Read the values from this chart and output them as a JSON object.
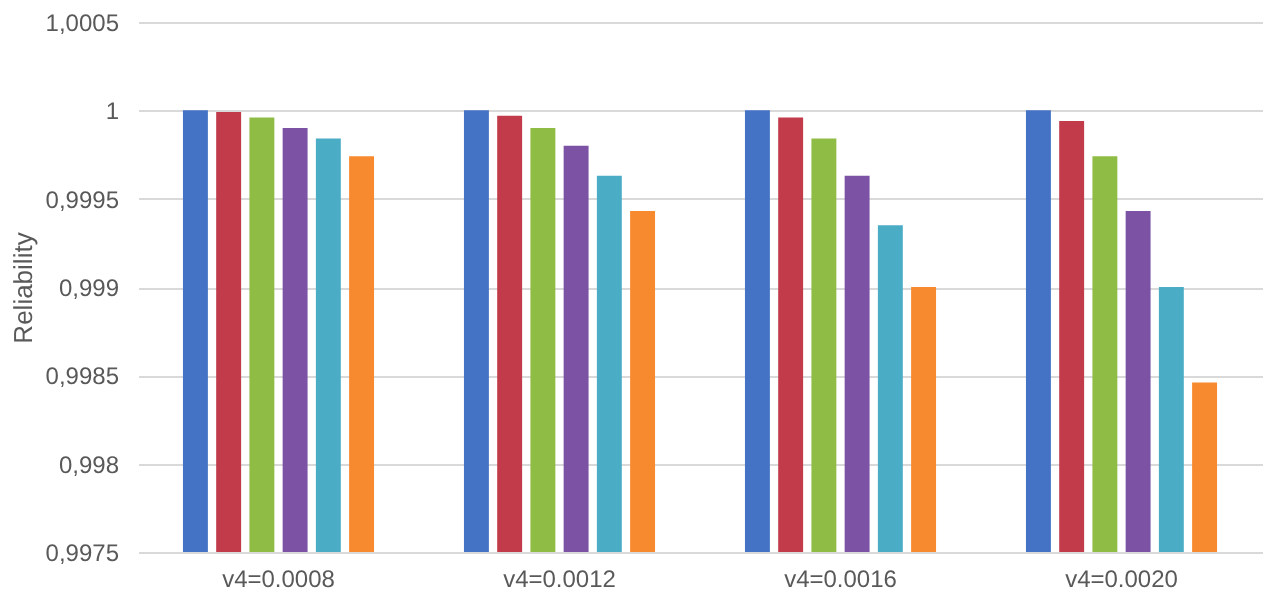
{
  "chart_data": {
    "type": "bar",
    "ylabel": "Reliability",
    "categories": [
      "v4=0.0008",
      "v4=0.0012",
      "v4=0.0016",
      "v4=0.0020"
    ],
    "series": [
      {
        "color": "#4472c4",
        "values": [
          1,
          1,
          1,
          1
        ]
      },
      {
        "color": "#c23b4b",
        "values": [
          0.99999,
          0.99997,
          0.99996,
          0.99994
        ]
      },
      {
        "color": "#8fbc45",
        "values": [
          0.99996,
          0.9999,
          0.99984,
          0.99974
        ]
      },
      {
        "color": "#7b52a4",
        "values": [
          0.9999,
          0.9998,
          0.99963,
          0.99943
        ]
      },
      {
        "color": "#4bacc6",
        "values": [
          0.99984,
          0.99963,
          0.99935,
          0.999
        ]
      },
      {
        "color": "#f7892f",
        "values": [
          0.99974,
          0.99943,
          0.999,
          0.99846
        ]
      }
    ],
    "ylim": [
      0.9975,
      1.0005
    ],
    "yticks": [
      {
        "value": 0.9975,
        "label": "0,9975"
      },
      {
        "value": 0.998,
        "label": "0,998"
      },
      {
        "value": 0.9985,
        "label": "0,9985"
      },
      {
        "value": 0.999,
        "label": "0,999"
      },
      {
        "value": 0.9995,
        "label": "0,9995"
      },
      1,
      {
        "value": 1.0005,
        "label": "1,0005"
      }
    ],
    "grid": "y"
  }
}
